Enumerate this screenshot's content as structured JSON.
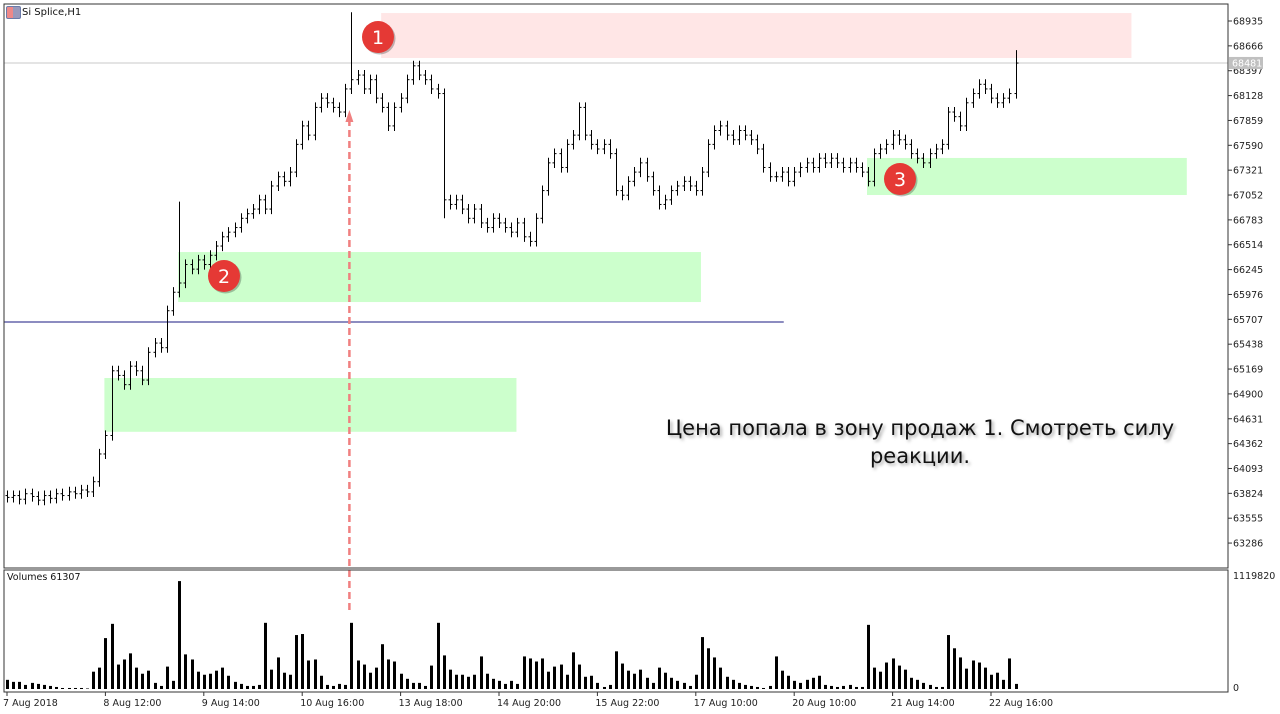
{
  "window": {
    "title": "Si Splice,H1"
  },
  "volume_label": "Volumes 61307",
  "annotation_text": "Цена попала в зону продаж 1. Смотреть силу реакции.",
  "markers": [
    {
      "label": "1",
      "color": "#e53935"
    },
    {
      "label": "2",
      "color": "#e53935"
    },
    {
      "label": "3",
      "color": "#e53935"
    }
  ],
  "colors": {
    "sell_zone": "#ffe6e6",
    "buy_zone": "#ccffcc",
    "level_line": "#1a1a80",
    "arrow": "#f08080",
    "current_price_bg": "#c0c0c0"
  },
  "chart_data": {
    "type": "ohlc",
    "symbol": "Si Splice",
    "timeframe": "H1",
    "ylim": [
      63150,
      69070
    ],
    "y_ticks": [
      68935,
      68666,
      68397,
      68128,
      67859,
      67590,
      67321,
      67052,
      66783,
      66514,
      66245,
      65976,
      65707,
      65438,
      65169,
      64900,
      64631,
      64362,
      64093,
      63824,
      63555,
      63286
    ],
    "x_ticks": [
      {
        "bar": 0,
        "label": "7 Aug 2018"
      },
      {
        "bar": 16,
        "label": "8 Aug 12:00"
      },
      {
        "bar": 32,
        "label": "9 Aug 14:00"
      },
      {
        "bar": 48,
        "label": "10 Aug 16:00"
      },
      {
        "bar": 64,
        "label": "13 Aug 18:00"
      },
      {
        "bar": 80,
        "label": "14 Aug 20:00"
      },
      {
        "bar": 96,
        "label": "15 Aug 22:00"
      },
      {
        "bar": 112,
        "label": "17 Aug 10:00"
      },
      {
        "bar": 128,
        "label": "20 Aug 10:00"
      },
      {
        "bar": 144,
        "label": "21 Aug 14:00"
      },
      {
        "bar": 160,
        "label": "22 Aug 16:00"
      }
    ],
    "current_price": "68481",
    "close": [
      63780,
      63800,
      63760,
      63820,
      63790,
      63750,
      63800,
      63770,
      63820,
      63800,
      63840,
      63820,
      63860,
      63840,
      63950,
      64250,
      64450,
      65150,
      65100,
      65000,
      65200,
      65150,
      65050,
      65350,
      65450,
      65400,
      65800,
      66000,
      66100,
      66300,
      66250,
      66350,
      66300,
      66400,
      66500,
      66600,
      66650,
      66700,
      66800,
      66850,
      66900,
      67000,
      66900,
      67150,
      67250,
      67200,
      67300,
      67600,
      67800,
      67700,
      68000,
      68100,
      68050,
      68000,
      67950,
      68200,
      68300,
      68350,
      68200,
      68300,
      68100,
      68000,
      67800,
      68000,
      68100,
      68300,
      68450,
      68350,
      68300,
      68200,
      68150,
      67000,
      66950,
      67000,
      66900,
      66800,
      66900,
      66750,
      66700,
      66800,
      66750,
      66700,
      66650,
      66750,
      66600,
      66550,
      66800,
      67100,
      67400,
      67500,
      67350,
      67600,
      67700,
      68000,
      67700,
      67600,
      67550,
      67600,
      67500,
      67100,
      67050,
      67200,
      67300,
      67400,
      67250,
      67100,
      66950,
      67000,
      67100,
      67150,
      67200,
      67150,
      67100,
      67300,
      67600,
      67750,
      67800,
      67700,
      67650,
      67750,
      67700,
      67650,
      67550,
      67350,
      67250,
      67250,
      67300,
      67200,
      67300,
      67350,
      67400,
      67350,
      67450,
      67400,
      67450,
      67400,
      67350,
      67400,
      67350,
      67300,
      67200,
      67500,
      67550,
      67600,
      67700,
      67650,
      67600,
      67500,
      67450,
      67400,
      67500,
      67550,
      67600,
      67950,
      67900,
      67800,
      68050,
      68150,
      68250,
      68200,
      68100,
      68050,
      68100,
      68150,
      68480
    ],
    "extremes": [
      {
        "bar": 28,
        "high": 66980
      },
      {
        "bar": 56,
        "high": 69030
      },
      {
        "bar": 71,
        "low": 66800
      },
      {
        "bar": 164,
        "high": 68620
      }
    ],
    "volume": {
      "ylim": [
        0,
        1119820
      ],
      "top_tick": "1119820",
      "bottom_tick": "0",
      "values": [
        90000,
        70000,
        70000,
        40000,
        60000,
        50000,
        40000,
        30000,
        20000,
        10000,
        10000,
        10000,
        10000,
        5000,
        170000,
        210000,
        500000,
        640000,
        240000,
        290000,
        350000,
        210000,
        150000,
        180000,
        60000,
        30000,
        220000,
        80000,
        1060000,
        340000,
        290000,
        170000,
        140000,
        150000,
        180000,
        210000,
        130000,
        70000,
        50000,
        30000,
        30000,
        40000,
        650000,
        190000,
        310000,
        160000,
        140000,
        530000,
        540000,
        280000,
        290000,
        130000,
        40000,
        30000,
        50000,
        40000,
        650000,
        280000,
        240000,
        160000,
        210000,
        440000,
        290000,
        270000,
        150000,
        100000,
        60000,
        60000,
        30000,
        230000,
        650000,
        330000,
        190000,
        140000,
        140000,
        120000,
        140000,
        320000,
        150000,
        100000,
        80000,
        50000,
        80000,
        50000,
        320000,
        300000,
        270000,
        300000,
        170000,
        220000,
        240000,
        140000,
        360000,
        240000,
        120000,
        130000,
        60000,
        20000,
        40000,
        370000,
        250000,
        180000,
        150000,
        190000,
        110000,
        60000,
        210000,
        160000,
        110000,
        80000,
        60000,
        30000,
        140000,
        510000,
        400000,
        310000,
        210000,
        120000,
        90000,
        60000,
        40000,
        30000,
        20000,
        10000,
        30000,
        320000,
        180000,
        130000,
        80000,
        60000,
        90000,
        110000,
        130000,
        40000,
        30000,
        20000,
        30000,
        40000,
        20000,
        20000,
        630000,
        210000,
        170000,
        260000,
        300000,
        230000,
        190000,
        110000,
        90000,
        60000,
        40000,
        20000,
        20000,
        530000,
        400000,
        310000,
        200000,
        280000,
        260000,
        210000,
        140000,
        160000,
        90000,
        300000,
        50000
      ]
    },
    "zones": [
      {
        "kind": "sell",
        "label": "1",
        "from_bar": 61,
        "to_bar": 183,
        "top": 69021,
        "bottom": 68535
      },
      {
        "kind": "buy",
        "label": "2",
        "from_bar": 28,
        "to_bar": 113,
        "top": 66435,
        "bottom": 65894
      },
      {
        "kind": "buy",
        "from_bar": 16,
        "to_bar": 83,
        "top": 65072,
        "bottom": 64490
      },
      {
        "kind": "buy",
        "label": "3",
        "from_bar": 140,
        "to_bar": 192,
        "top": 67453,
        "bottom": 67052
      }
    ],
    "horizontal_line": {
      "price": 65678,
      "to_bar": 125
    },
    "arrow_bar": 56
  }
}
